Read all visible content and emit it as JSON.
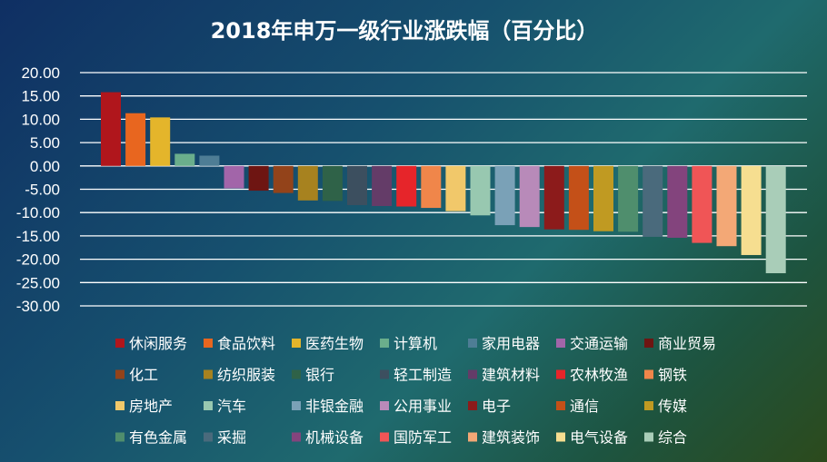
{
  "chart_data": {
    "type": "bar",
    "title": "2018年申万一级行业涨跌幅（百分比）",
    "xlabel": "",
    "ylabel": "",
    "ylim": [
      -30,
      20
    ],
    "yticks": [
      "20.00",
      "15.00",
      "10.00",
      "5.00",
      "0.00",
      "-5.00",
      "-10.00",
      "-15.00",
      "-20.00",
      "-25.00",
      "-30.00"
    ],
    "grid": true,
    "legend_position": "bottom",
    "categories": [
      "休闲服务",
      "食品饮料",
      "医药生物",
      "计算机",
      "家用电器",
      "交通运输",
      "商业贸易",
      "化工",
      "纺织服装",
      "银行",
      "轻工制造",
      "建筑材料",
      "农林牧渔",
      "钢铁",
      "房地产",
      "汽车",
      "非银金融",
      "公用事业",
      "电子",
      "通信",
      "传媒",
      "有色金属",
      "采掘",
      "机械设备",
      "国防军工",
      "建筑装饰",
      "电气设备",
      "综合"
    ],
    "values": [
      15.8,
      11.3,
      10.4,
      2.6,
      2.2,
      -4.8,
      -5.3,
      -5.8,
      -7.4,
      -7.5,
      -8.4,
      -8.6,
      -8.7,
      -9.0,
      -9.7,
      -10.6,
      -12.7,
      -13.1,
      -13.6,
      -13.7,
      -14.0,
      -14.1,
      -15.2,
      -15.4,
      -16.5,
      -17.2,
      -19.1,
      -23.0
    ],
    "colors": [
      "#b0161c",
      "#e8661f",
      "#e4b52b",
      "#6aae8c",
      "#4e7d95",
      "#a265a9",
      "#6e1512",
      "#93431a",
      "#a7821f",
      "#2f6248",
      "#3c4f5f",
      "#643c68",
      "#e6252a",
      "#f0864a",
      "#f1c86a",
      "#98c8b0",
      "#7aa1b7",
      "#b88ab9",
      "#8c1b1b",
      "#c45018",
      "#c09a22",
      "#4f8e6d",
      "#4a6a7c",
      "#83447d",
      "#f05556",
      "#f3a876",
      "#f6de90",
      "#a9cdb8"
    ]
  }
}
